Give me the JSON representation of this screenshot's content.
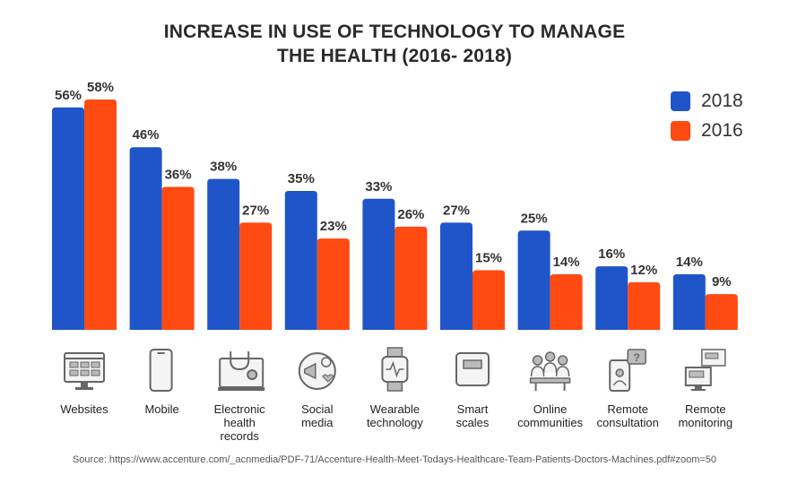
{
  "title_line1": "INCREASE IN USE OF TECHNOLOGY TO MANAGE",
  "title_line2": "THE HEALTH (2016- 2018)",
  "source": "Source: https://www.accenture.com/_acnmedia/PDF-71/Accenture-Health-Meet-Todays-Healthcare-Team-Patients-Doctors-Machines.pdf#zoom=50",
  "colors": {
    "2018": "#1f55c8",
    "2016": "#ff4a12"
  },
  "chart_data": {
    "type": "bar",
    "categories": [
      "Websites",
      "Mobile",
      "Electronic health records",
      "Social media",
      "Wearable technology",
      "Smart scales",
      "Online communities",
      "Remote consultation",
      "Remote monitoring"
    ],
    "category_lines": [
      [
        "Websites"
      ],
      [
        "Mobile"
      ],
      [
        "Electronic",
        "health",
        "records"
      ],
      [
        "Social",
        "media"
      ],
      [
        "Wearable",
        "technology"
      ],
      [
        "Smart",
        "scales"
      ],
      [
        "Online",
        "communities"
      ],
      [
        "Remote",
        "consultation"
      ],
      [
        "Remote",
        "monitoring"
      ]
    ],
    "series": [
      {
        "name": "2018",
        "values": [
          56,
          46,
          38,
          35,
          33,
          27,
          25,
          16,
          14
        ]
      },
      {
        "name": "2016",
        "values": [
          58,
          36,
          27,
          23,
          26,
          15,
          14,
          12,
          9
        ]
      }
    ],
    "value_suffix": "%",
    "legend_position": "top-right",
    "grid": false
  },
  "icons": [
    "website-icon",
    "mobile-icon",
    "ehr-icon",
    "social-media-icon",
    "wearable-icon",
    "smart-scale-icon",
    "online-community-icon",
    "remote-consultation-icon",
    "remote-monitoring-icon"
  ]
}
